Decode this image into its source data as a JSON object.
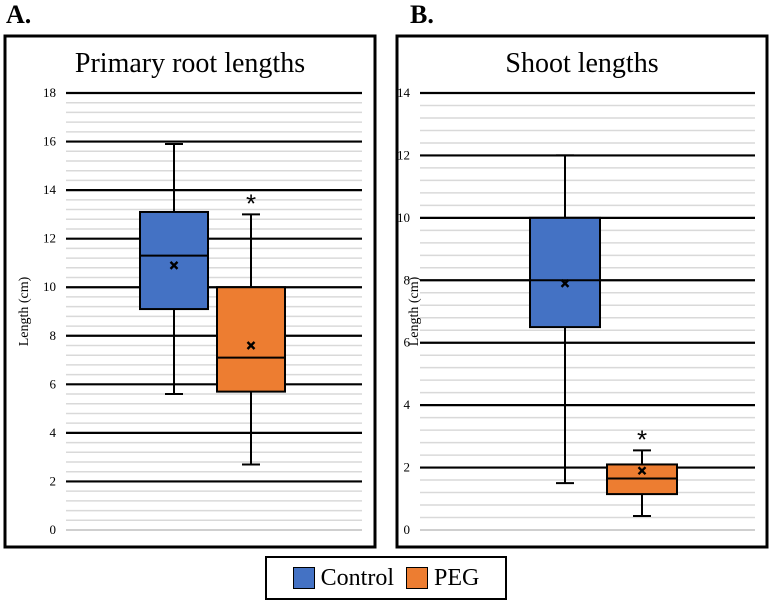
{
  "panels": [
    {
      "letter": "A."
    },
    {
      "letter": "B."
    }
  ],
  "legend": {
    "items": [
      {
        "label": "Control",
        "color": "#4472C4"
      },
      {
        "label": "PEG",
        "color": "#ED7D31"
      }
    ]
  },
  "chart_data": [
    {
      "type": "box",
      "title": "Primary root lengths",
      "ylabel": "Length (cm)",
      "xlabel": "",
      "ylim": [
        0,
        18
      ],
      "major_ticks": [
        0,
        2,
        4,
        6,
        8,
        10,
        12,
        14,
        16,
        18
      ],
      "minor_step": 0.4,
      "series": [
        {
          "name": "Control",
          "color": "#4472C4",
          "min": 5.6,
          "q1": 9.1,
          "median": 11.3,
          "q3": 13.1,
          "max": 15.9,
          "mean": 10.9,
          "annotation": ""
        },
        {
          "name": "PEG",
          "color": "#ED7D31",
          "min": 2.7,
          "q1": 5.7,
          "median": 7.1,
          "q3": 10.0,
          "max": 13.0,
          "mean": 7.6,
          "annotation": "*"
        }
      ]
    },
    {
      "type": "box",
      "title": "Shoot lengths",
      "ylabel": "Length (cm)",
      "xlabel": "",
      "ylim": [
        0,
        14
      ],
      "major_ticks": [
        0,
        2,
        4,
        6,
        8,
        10,
        12,
        14
      ],
      "minor_step": 0.4,
      "series": [
        {
          "name": "Control",
          "color": "#4472C4",
          "min": 1.5,
          "q1": 6.5,
          "median": 8.0,
          "q3": 10.0,
          "max": 12.0,
          "mean": 7.9,
          "annotation": ""
        },
        {
          "name": "PEG",
          "color": "#ED7D31",
          "min": 0.45,
          "q1": 1.15,
          "median": 1.65,
          "q3": 2.1,
          "max": 2.55,
          "mean": 1.9,
          "annotation": "*"
        }
      ]
    }
  ]
}
